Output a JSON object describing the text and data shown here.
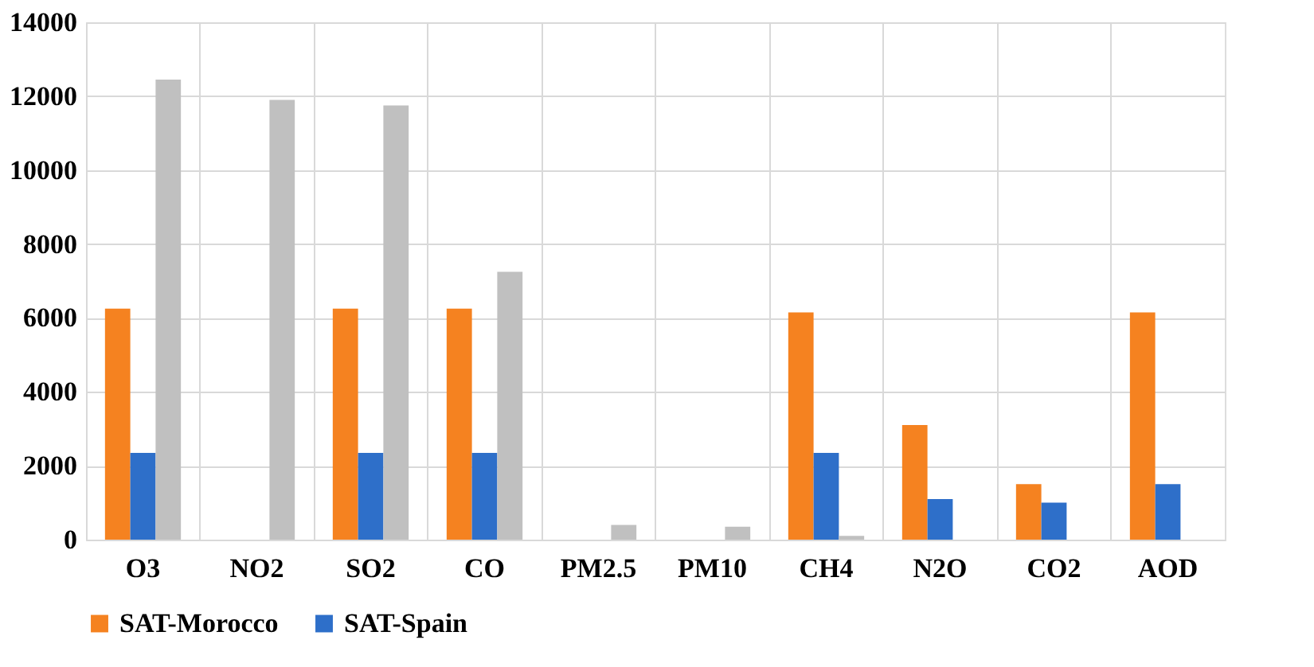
{
  "chart_data": {
    "type": "bar",
    "categories": [
      "O3",
      "NO2",
      "SO2",
      "CO",
      "PM2.5",
      "PM10",
      "CH4",
      "N2O",
      "CO2",
      "AOD"
    ],
    "series": [
      {
        "name": "SAT-Morocco",
        "color": "#f58220",
        "values": [
          6250,
          null,
          6250,
          6250,
          null,
          null,
          6150,
          3100,
          1500,
          6150
        ]
      },
      {
        "name": "SAT-Spain",
        "color": "#2e6fc9",
        "values": [
          2350,
          null,
          2350,
          2350,
          null,
          null,
          2350,
          1100,
          1000,
          1500
        ]
      },
      {
        "color": "#c0c0c0",
        "values": [
          12450,
          11900,
          11750,
          7250,
          400,
          350,
          100,
          null,
          null,
          null
        ]
      }
    ],
    "ylim": [
      0,
      14000
    ],
    "yticks": [
      0,
      2000,
      4000,
      6000,
      8000,
      10000,
      12000,
      14000
    ],
    "grid": true,
    "legend": "bottom"
  }
}
